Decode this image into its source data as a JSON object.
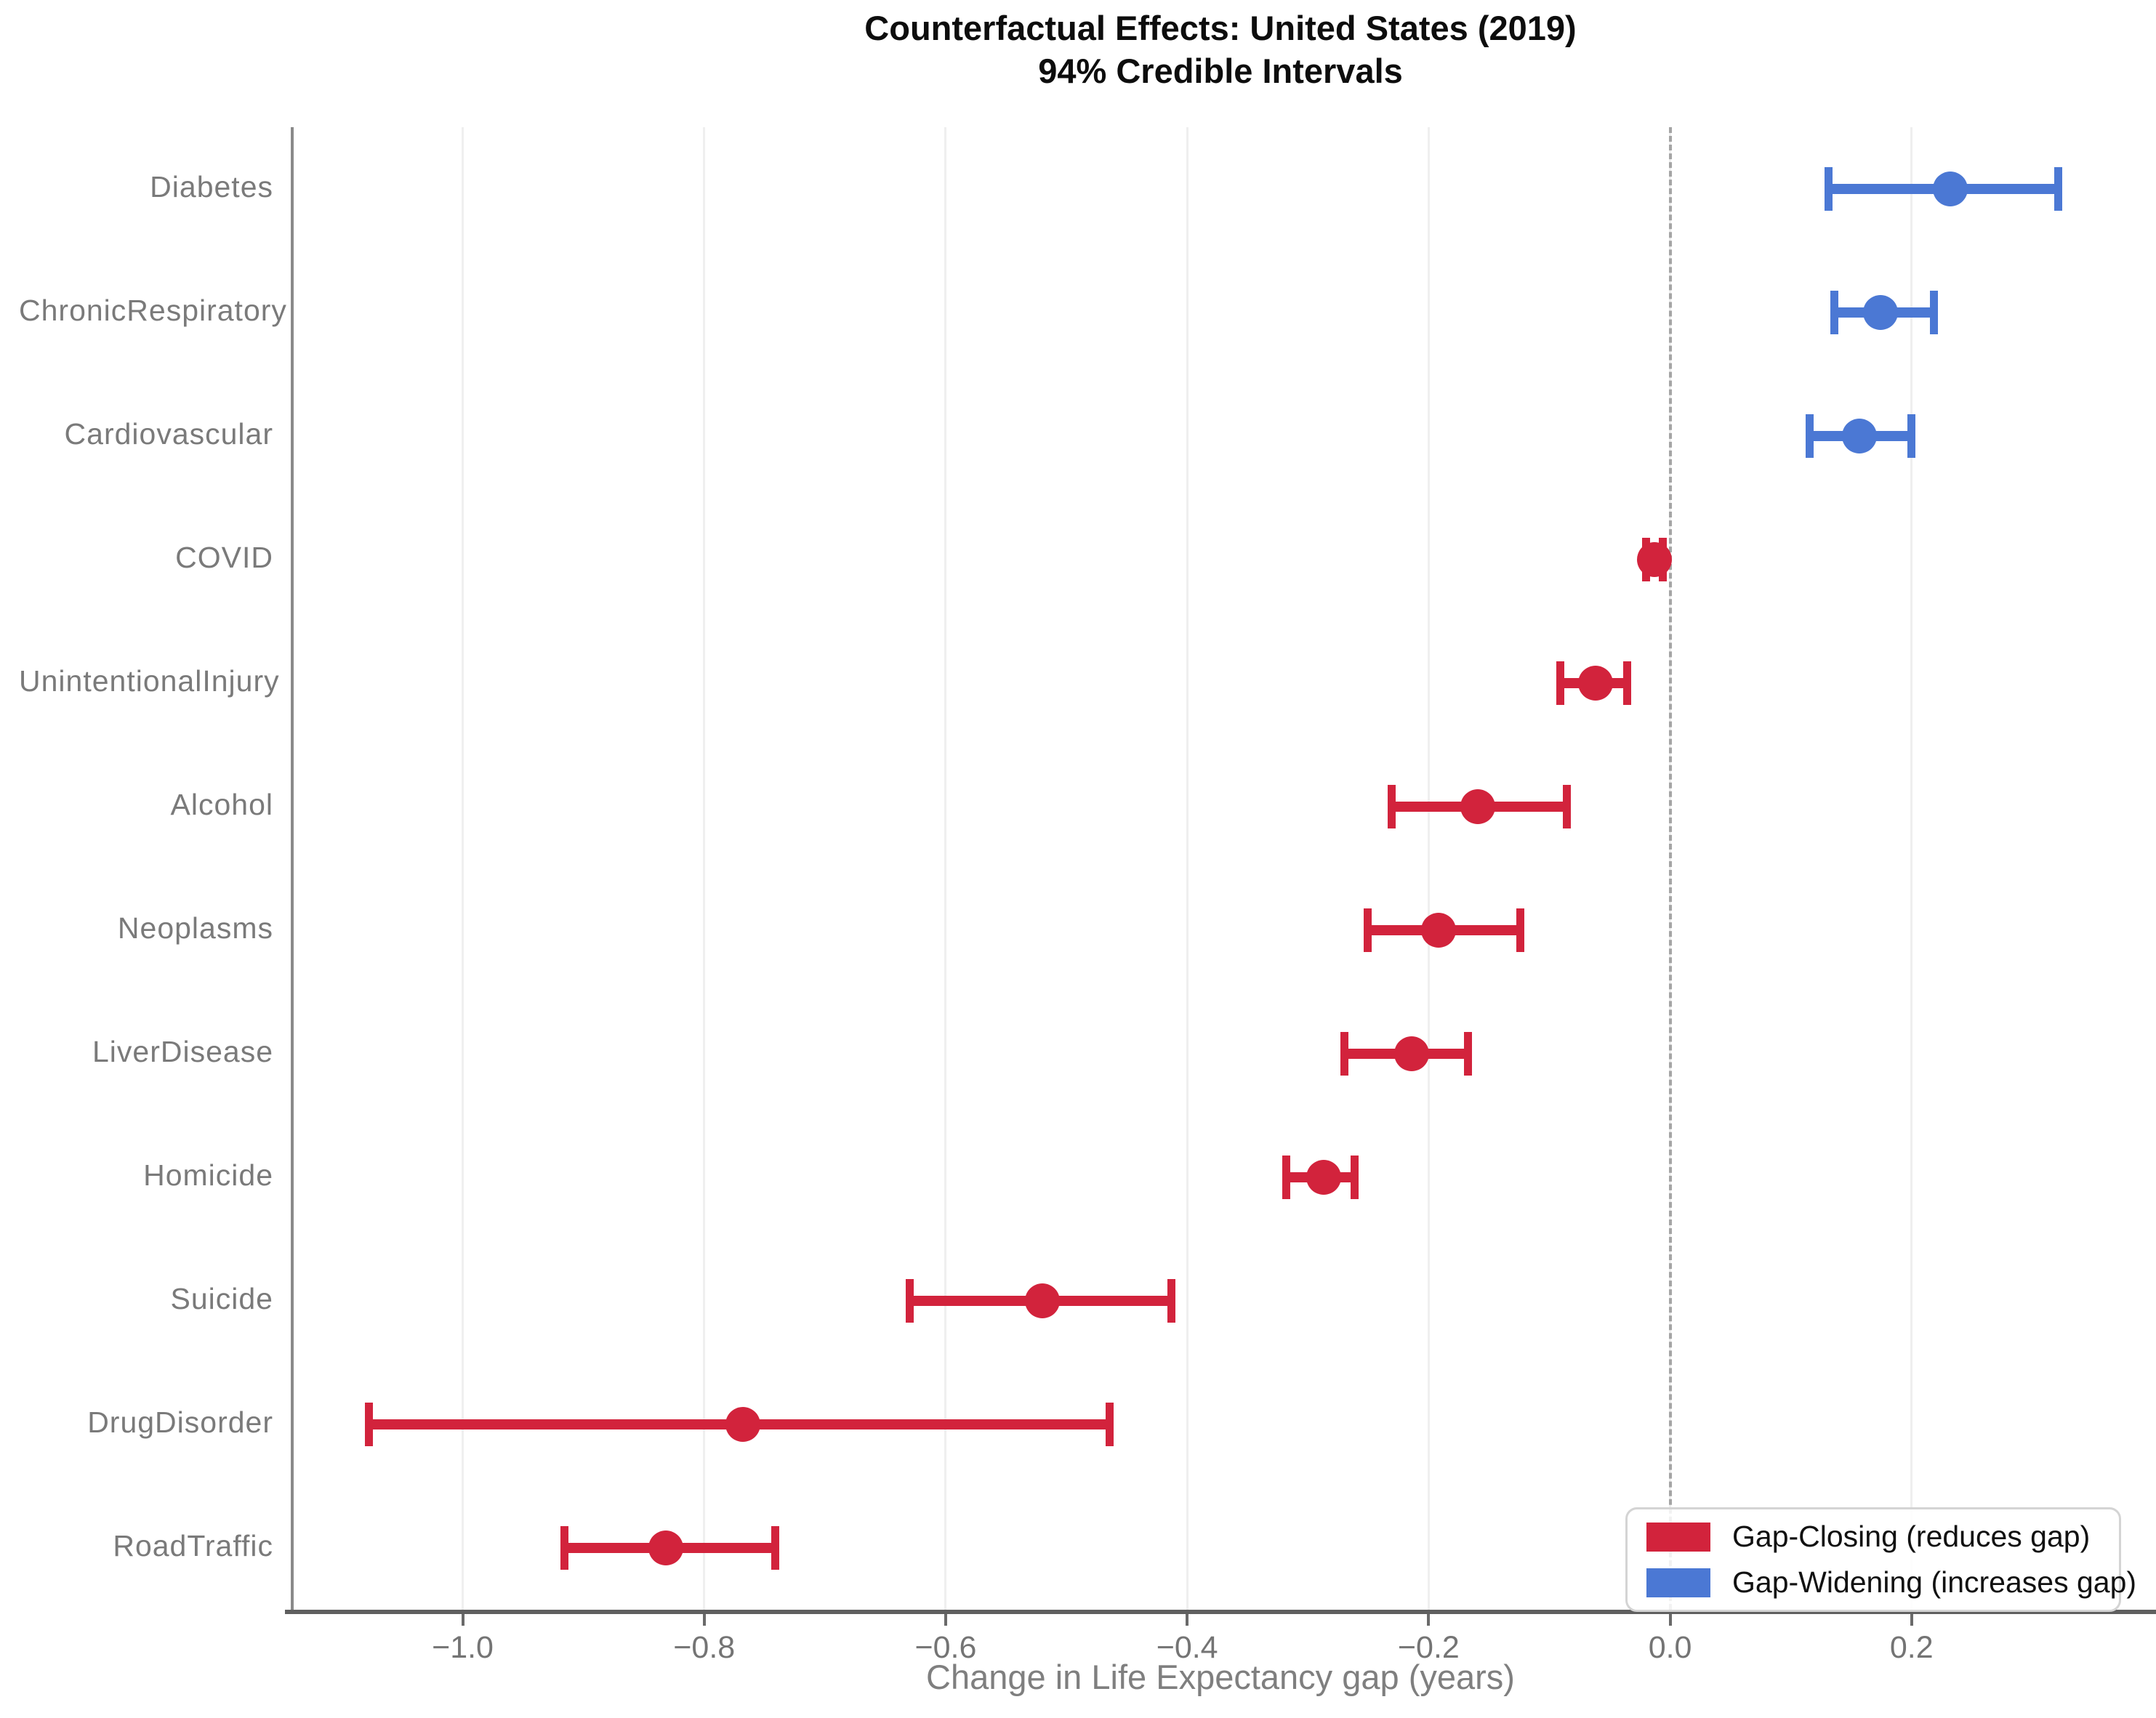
{
  "title": "Counterfactual Effects: United States (2019)",
  "subtitle": "94% Credible Intervals",
  "chart_data": {
    "type": "scatter",
    "subtype": "horizontal-errorbar-forest-plot",
    "title": "Counterfactual Effects: United States (2019)",
    "subtitle": "94% Credible Intervals",
    "xlabel": "Change in Life Expectancy gap (years)",
    "ylabel": "",
    "xlim": [
      -1.14,
      0.4
    ],
    "grid": "vertical-light",
    "zero_reference_line": 0.0,
    "x_ticks": [
      -1.0,
      -0.8,
      -0.6,
      -0.4,
      -0.2,
      0.0,
      0.2
    ],
    "x_tick_labels": [
      "−1.0",
      "−0.8",
      "−0.6",
      "−0.4",
      "−0.2",
      "0.0",
      "0.2"
    ],
    "categories": [
      "Diabetes",
      "ChronicRespiratory",
      "Cardiovascular",
      "COVID",
      "UnintentionalInjury",
      "Alcohol",
      "Neoplasms",
      "LiverDisease",
      "Homicide",
      "Suicide",
      "DrugDisorder",
      "RoadTraffic"
    ],
    "points": [
      {
        "label": "Diabetes",
        "value": 0.232,
        "lower": 0.131,
        "upper": 0.322,
        "group": "widening"
      },
      {
        "label": "ChronicRespiratory",
        "value": 0.174,
        "lower": 0.136,
        "upper": 0.219,
        "group": "widening"
      },
      {
        "label": "Cardiovascular",
        "value": 0.157,
        "lower": 0.115,
        "upper": 0.2,
        "group": "widening"
      },
      {
        "label": "COVID",
        "value": -0.013,
        "lower": -0.02,
        "upper": -0.006,
        "group": "closing"
      },
      {
        "label": "UnintentionalInjury",
        "value": -0.062,
        "lower": -0.091,
        "upper": -0.035,
        "group": "closing"
      },
      {
        "label": "Alcohol",
        "value": -0.159,
        "lower": -0.231,
        "upper": -0.085,
        "group": "closing"
      },
      {
        "label": "Neoplasms",
        "value": -0.192,
        "lower": -0.251,
        "upper": -0.124,
        "group": "closing"
      },
      {
        "label": "LiverDisease",
        "value": -0.214,
        "lower": -0.27,
        "upper": -0.167,
        "group": "closing"
      },
      {
        "label": "Homicide",
        "value": -0.287,
        "lower": -0.318,
        "upper": -0.261,
        "group": "closing"
      },
      {
        "label": "Suicide",
        "value": -0.52,
        "lower": -0.63,
        "upper": -0.413,
        "group": "closing"
      },
      {
        "label": "DrugDisorder",
        "value": -0.768,
        "lower": -1.078,
        "upper": -0.464,
        "group": "closing"
      },
      {
        "label": "RoadTraffic",
        "value": -0.832,
        "lower": -0.916,
        "upper": -0.741,
        "group": "closing"
      }
    ],
    "legend": {
      "position": "lower right",
      "entries": [
        {
          "label": "Gap-Closing (reduces gap)",
          "group": "closing",
          "color": "#d2233c"
        },
        {
          "label": "Gap-Widening (increases gap)",
          "group": "widening",
          "color": "#4b78d4"
        }
      ]
    }
  }
}
